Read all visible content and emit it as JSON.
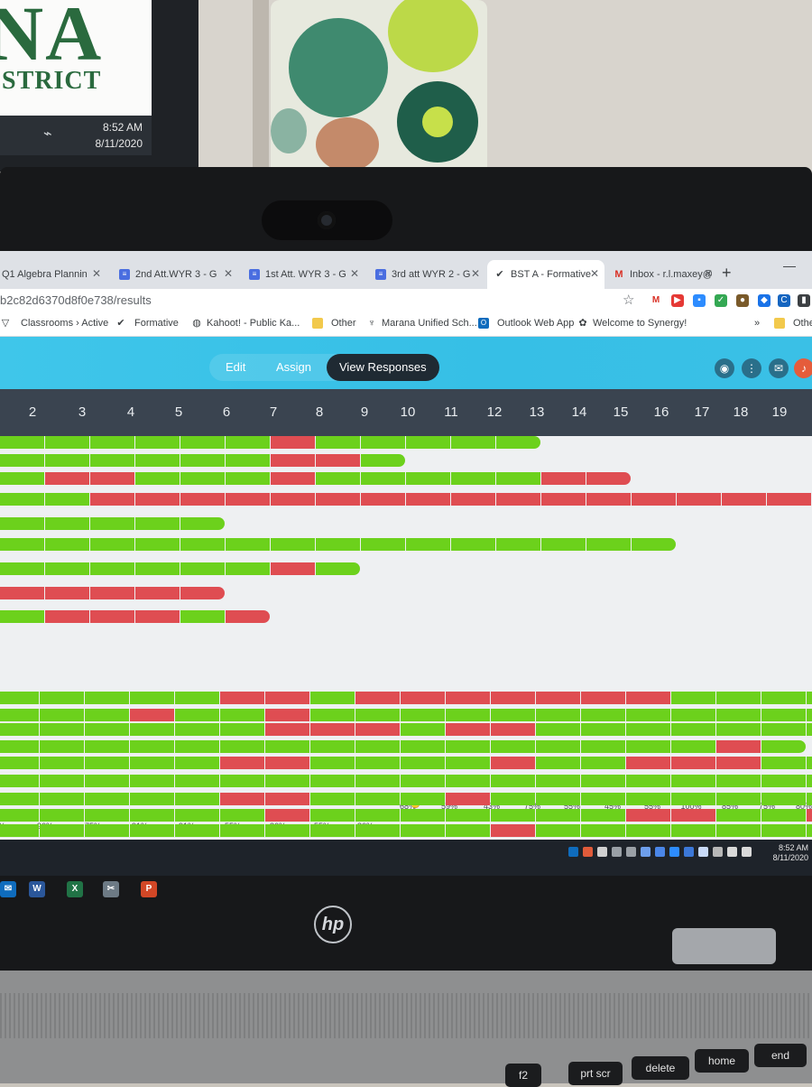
{
  "monitor": {
    "logo_text": "NA",
    "sub_text": "STRICT",
    "time": "8:52 AM",
    "date": "8/11/2020"
  },
  "browser": {
    "tabs": [
      {
        "title": "Q1 Algebra Plannin",
        "icon": "doc-icon"
      },
      {
        "title": "2nd Att.WYR 3 - G",
        "icon": "doc-icon"
      },
      {
        "title": "1st Att. WYR 3 - G",
        "icon": "doc-icon"
      },
      {
        "title": "3rd att WYR 2 - G",
        "icon": "doc-icon"
      },
      {
        "title": "BST A - Formative",
        "icon": "formative-check-icon"
      },
      {
        "title": "Inbox - r.l.maxey@",
        "icon": "gmail-icon"
      }
    ],
    "url": "b2c82d6370d8f0e738/results",
    "bookmarks": [
      {
        "label": "Classrooms › Active",
        "icon": "classroom-icon"
      },
      {
        "label": "Formative",
        "icon": "formative-check-icon"
      },
      {
        "label": "Kahoot! - Public Ka...",
        "icon": "globe-icon"
      },
      {
        "label": "Other",
        "icon": "folder-icon"
      },
      {
        "label": "Marana Unified Sch...",
        "icon": "school-icon"
      },
      {
        "label": "Outlook Web App",
        "icon": "outlook-icon"
      },
      {
        "label": "Welcome to Synergy!",
        "icon": "synergy-icon"
      },
      {
        "label": "»",
        "icon": ""
      },
      {
        "label": "Other",
        "icon": "folder-icon"
      }
    ]
  },
  "app": {
    "tabs": [
      {
        "label": "Edit"
      },
      {
        "label": "Assign"
      },
      {
        "label": "View Responses"
      }
    ],
    "active_tab": "View Responses",
    "question_numbers": [
      "2",
      "3",
      "4",
      "5",
      "6",
      "7",
      "8",
      "9",
      "10",
      "11",
      "12",
      "13",
      "14",
      "15",
      "16",
      "17",
      "18",
      "19"
    ],
    "percent_row_top": [
      "68%",
      "59%",
      "43%",
      "75%",
      "55%",
      "45%",
      "55%",
      "100%",
      "85%",
      "75%",
      "80%"
    ],
    "percent_row_bottom": [
      "%",
      "96%",
      "75%",
      "91%",
      "91%",
      "55%",
      "36%",
      "55%",
      "86%"
    ],
    "colors": {
      "correct": "#6cd11c",
      "incorrect": "#df4d52",
      "header": "#3a4450",
      "appbar": "#3fc6ea"
    }
  },
  "taskbar": {
    "time": "8:52 AM",
    "date": "8/11/2020",
    "apps": [
      "mail-icon",
      "word-icon",
      "excel-icon",
      "snipping-icon",
      "powerpoint-icon"
    ]
  },
  "keyboard": {
    "keys": [
      "f2",
      "prt scr",
      "delete",
      "home",
      "end"
    ]
  }
}
